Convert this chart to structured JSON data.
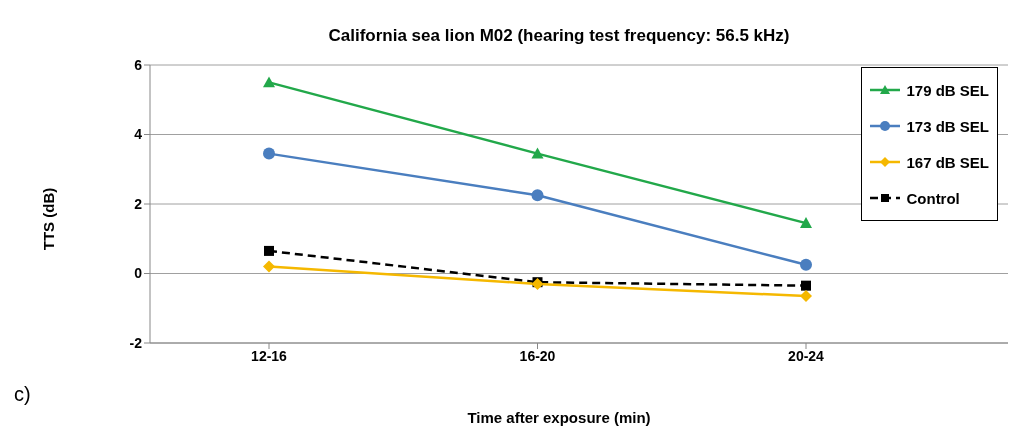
{
  "chart_data": {
    "type": "line",
    "title": "California sea lion M02 (hearing test frequency: 56.5 kHz)",
    "xlabel": "Time after exposure (min)",
    "ylabel": "TTS (dB)",
    "annotations": [
      "c)"
    ],
    "categories": [
      "12-16",
      "16-20",
      "20-24"
    ],
    "series": [
      {
        "name": "179 dB SEL",
        "color": "#22a84a",
        "marker": "triangle",
        "line_style": "solid",
        "values": [
          5.5,
          3.45,
          1.45
        ]
      },
      {
        "name": "173 dB SEL",
        "color": "#4a7ebf",
        "marker": "circle",
        "line_style": "solid",
        "values": [
          3.45,
          2.25,
          0.25
        ]
      },
      {
        "name": "167 dB SEL",
        "color": "#f5b800",
        "marker": "diamond",
        "line_style": "solid",
        "values": [
          0.2,
          -0.3,
          -0.65
        ]
      },
      {
        "name": "Control",
        "color": "#000000",
        "marker": "square",
        "line_style": "dashed",
        "values": [
          0.65,
          -0.25,
          -0.35
        ]
      }
    ],
    "ylim": [
      -2,
      6
    ],
    "yticks": [
      -2,
      0,
      2,
      4,
      6
    ],
    "grid": "y",
    "legend": "top right"
  }
}
